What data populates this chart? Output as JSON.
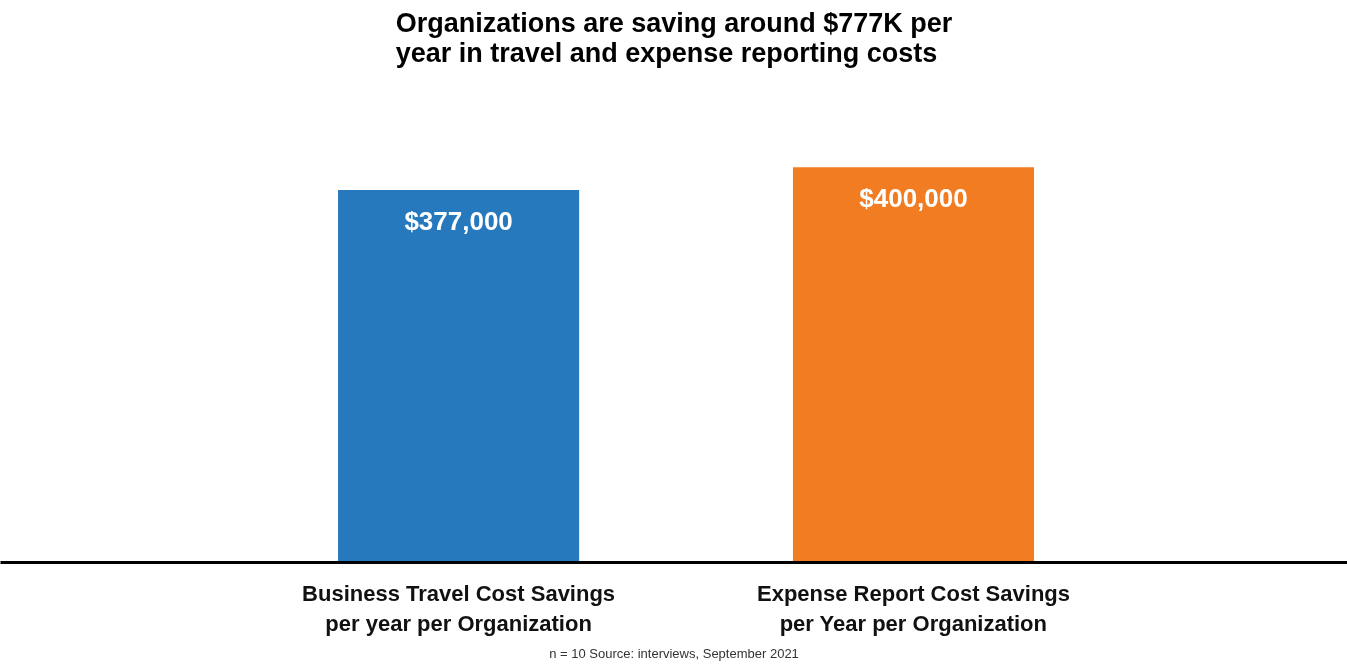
{
  "chart_data": {
    "type": "bar",
    "title": "Organizations are saving around $777K per\nyear in  travel and expense reporting costs",
    "categories": [
      "Business Travel Cost Savings\nper year per Organization",
      "Expense Report Cost Savings\nper Year per Organization"
    ],
    "values": [
      377000,
      400000
    ],
    "colors": [
      "#2779bd",
      "#f27c22"
    ],
    "value_labels": [
      "$377,000",
      "$400,000"
    ],
    "data_labels": true,
    "tick_labels": "x",
    "grid": false,
    "annotations": [
      "n = 10 Source: interviews, September 2021"
    ]
  }
}
